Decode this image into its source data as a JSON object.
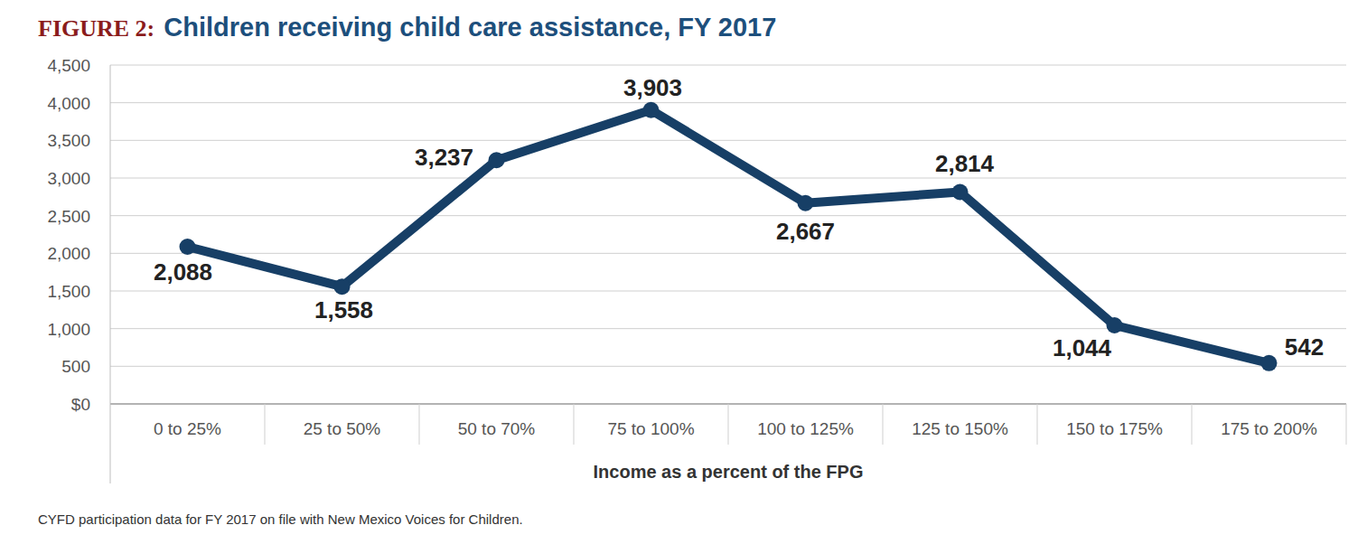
{
  "chart_data": {
    "type": "line",
    "figure_label": "FIGURE 2:",
    "title": "Children receiving child care assistance, FY 2017",
    "x_label": "Income as a percent of the FPG",
    "source": "CYFD participation data for FY 2017 on file with New Mexico Voices for Children.",
    "categories": [
      "0 to 25%",
      "25 to 50%",
      "50 to 70%",
      "75 to 100%",
      "100 to 125%",
      "125 to 150%",
      "150 to 175%",
      "175 to 200%"
    ],
    "values": [
      2088,
      1558,
      3237,
      3903,
      2667,
      2814,
      1044,
      542
    ],
    "value_labels": [
      "2,088",
      "1,558",
      "3,237",
      "3,903",
      "2,667",
      "2,814",
      "1,044",
      "542"
    ],
    "color": "#173f66",
    "marker": "circle",
    "data_labels": true,
    "grid": true,
    "ylim": [
      0,
      4500
    ],
    "yticks": [
      {
        "value": 0,
        "label": "$0"
      },
      500,
      {
        "value": 1000,
        "label": "1,000"
      },
      {
        "value": 1500,
        "label": "1,500"
      },
      {
        "value": 2000,
        "label": "2,000"
      },
      {
        "value": 2500,
        "label": "2,500"
      },
      {
        "value": 3000,
        "label": "3,000"
      },
      {
        "value": 3500,
        "label": "3,500"
      },
      {
        "value": 4000,
        "label": "4,000"
      },
      {
        "value": 4500,
        "label": "4,500"
      }
    ]
  }
}
